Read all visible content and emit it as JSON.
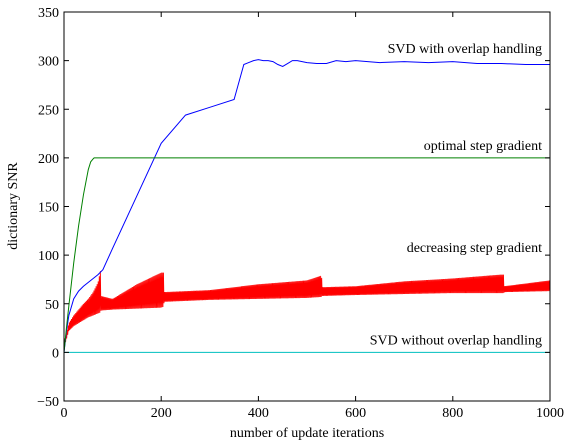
{
  "chart_data": {
    "type": "line",
    "title": "",
    "xlabel": "number of update iterations",
    "ylabel": "dictionary SNR",
    "xlim": [
      0,
      1000
    ],
    "ylim": [
      -50,
      350
    ],
    "x_ticks": [
      0,
      200,
      400,
      600,
      800,
      1000
    ],
    "y_ticks": [
      -50,
      0,
      50,
      100,
      150,
      200,
      250,
      300,
      350
    ],
    "grid": false,
    "legend": "none",
    "annotations": [
      {
        "text": "SVD with overlap handling",
        "x": 1000,
        "y": 308
      },
      {
        "text": "optimal step gradient",
        "x": 1000,
        "y": 208
      },
      {
        "text": "decreasing step gradient",
        "x": 1000,
        "y": 103
      },
      {
        "text": "SVD without overlap handling",
        "x": 1000,
        "y": 8
      }
    ],
    "series": [
      {
        "color": "#0000ff",
        "style": "line",
        "x": [
          0,
          5,
          10,
          20,
          30,
          40,
          50,
          60,
          70,
          80,
          100,
          150,
          200,
          250,
          300,
          350,
          370,
          380,
          390,
          400,
          410,
          420,
          430,
          440,
          450,
          460,
          470,
          480,
          500,
          520,
          540,
          560,
          580,
          600,
          650,
          700,
          750,
          800,
          850,
          900,
          950,
          1000
        ],
        "y": [
          0,
          22,
          38,
          55,
          63,
          68,
          72,
          76,
          80,
          85,
          107,
          161,
          215,
          244,
          252,
          260,
          296,
          298,
          300,
          301,
          300,
          300,
          299,
          296,
          294,
          297,
          300,
          300,
          298,
          297,
          297,
          300,
          299,
          300,
          298,
          299,
          298,
          299,
          297,
          297,
          296,
          296
        ]
      },
      {
        "color": "#008000",
        "style": "line",
        "x": [
          0,
          5,
          10,
          20,
          30,
          40,
          50,
          55,
          60,
          62,
          100,
          200,
          400,
          600,
          800,
          1000
        ],
        "y": [
          0,
          25,
          48,
          92,
          130,
          162,
          188,
          196,
          199,
          200,
          200,
          200,
          200,
          200,
          200,
          200
        ]
      },
      {
        "color": "#00bfbf",
        "style": "line",
        "x": [
          0,
          1000
        ],
        "y": [
          0,
          0
        ]
      },
      {
        "color": "#ff0000",
        "style": "oscillating-band",
        "x": [
          0,
          10,
          20,
          30,
          40,
          50,
          60,
          70,
          75,
          76,
          100,
          150,
          200,
          205,
          206,
          300,
          400,
          500,
          530,
          531,
          600,
          700,
          800,
          900,
          905,
          906,
          1000
        ],
        "upper": [
          10,
          30,
          38,
          44,
          50,
          55,
          62,
          72,
          84,
          58,
          55,
          70,
          82,
          82,
          62,
          64,
          70,
          74,
          79,
          67,
          68,
          73,
          76,
          80,
          80,
          68,
          74
        ],
        "lower": [
          5,
          22,
          27,
          30,
          33,
          36,
          38,
          40,
          41,
          43,
          44,
          45,
          46,
          47,
          52,
          54,
          55,
          56,
          57,
          58,
          59,
          60,
          61,
          61,
          61,
          62,
          63
        ]
      }
    ]
  }
}
